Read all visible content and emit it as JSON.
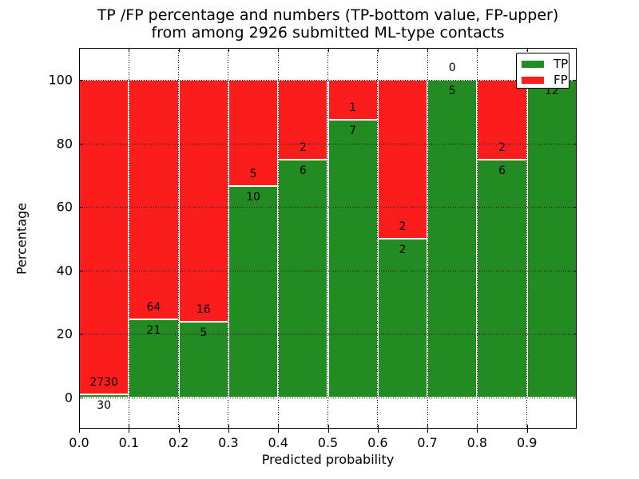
{
  "title": {
    "line1": "TP /FP percentage and numbers (TP-bottom value, FP-upper)",
    "line2": "from among 2926 submitted ML-type contacts"
  },
  "axes": {
    "xlabel": "Predicted probability",
    "ylabel": "Percentage",
    "xtick_labels": [
      "0.0",
      "0.1",
      "0.2",
      "0.3",
      "0.4",
      "0.5",
      "0.6",
      "0.7",
      "0.8",
      "0.9"
    ],
    "ytick_values": [
      0,
      20,
      40,
      60,
      80,
      100
    ],
    "ytick_labels": [
      "0",
      "20",
      "40",
      "60",
      "80",
      "100"
    ],
    "xlim": [
      0.0,
      1.0
    ],
    "ylim": [
      -9.8,
      110.1
    ],
    "grid_style": "dotted"
  },
  "legend": {
    "position": "upper right",
    "items": [
      {
        "label": "TP",
        "color": "#228b22"
      },
      {
        "label": "FP",
        "color": "#fb1c1c"
      }
    ]
  },
  "chart_data": {
    "type": "bar",
    "stacked": true,
    "bars_normalized_to_percent": true,
    "title": "TP /FP percentage and numbers (TP-bottom value, FP-upper) from among 2926 submitted ML-type contacts",
    "xlabel": "Predicted probability",
    "ylabel": "Percentage",
    "bin_edges": [
      0.0,
      0.1,
      0.2,
      0.3,
      0.4,
      0.5,
      0.6,
      0.7,
      0.8,
      0.9,
      1.0
    ],
    "categories": [
      "0.0-0.1",
      "0.1-0.2",
      "0.2-0.3",
      "0.3-0.4",
      "0.4-0.5",
      "0.5-0.6",
      "0.6-0.7",
      "0.7-0.8",
      "0.8-0.9",
      "0.9-1.0"
    ],
    "series": [
      {
        "name": "TP",
        "color": "#228b22",
        "counts": [
          30,
          21,
          5,
          10,
          6,
          7,
          2,
          5,
          6,
          12
        ]
      },
      {
        "name": "FP",
        "color": "#fb1c1c",
        "counts": [
          2730,
          64,
          16,
          5,
          2,
          1,
          2,
          0,
          2,
          0
        ]
      }
    ],
    "tp_percent": [
      1.09,
      24.71,
      23.81,
      66.67,
      75.0,
      87.5,
      50.0,
      100.0,
      75.0,
      100.0
    ],
    "total_contacts": 2926,
    "legend_position": "upper right",
    "grid": "dotted"
  }
}
